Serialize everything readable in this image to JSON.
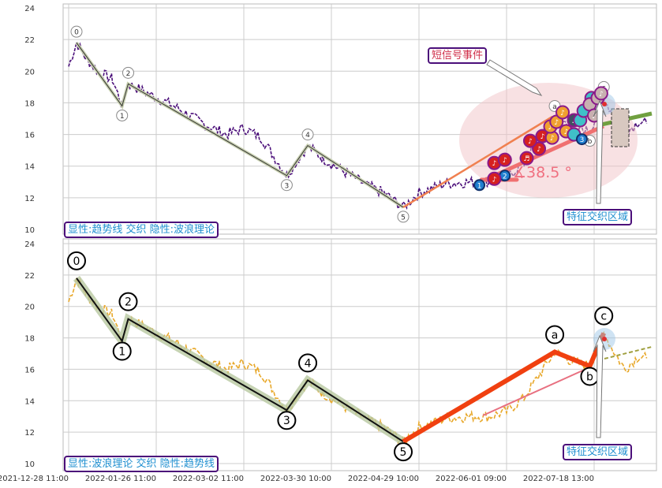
{
  "chart_data": [
    {
      "type": "line",
      "panel": "top",
      "title": "",
      "xlabel": "",
      "ylabel": "",
      "ylim": [
        10,
        24
      ],
      "yticks": [
        10,
        12,
        14,
        16,
        18,
        20,
        22,
        24
      ],
      "grid": true,
      "annotation_box": "显性:趋势线 交织 隐性:波浪理论",
      "event_label": "短信号事件",
      "region_label": "特征交织区域",
      "angle_label": "∡38.5 °",
      "series_color": "#4b0f7a",
      "events": [
        {
          "x": 469,
          "y": 12.8,
          "kind": "blue",
          "label": "1"
        },
        {
          "x": 498,
          "y": 13.4,
          "kind": "blue",
          "label": "2"
        },
        {
          "x": 486,
          "y": 13.2,
          "kind": "red",
          "label": "♪"
        },
        {
          "x": 486,
          "y": 14.2,
          "kind": "red",
          "label": "♪"
        },
        {
          "x": 498,
          "y": 14.4,
          "kind": "red",
          "label": "♪"
        },
        {
          "x": 523,
          "y": 14.5,
          "kind": "red",
          "label": "♬"
        },
        {
          "x": 537,
          "y": 15.1,
          "kind": "red",
          "label": "♪"
        },
        {
          "x": 527,
          "y": 15.6,
          "kind": "red",
          "label": "♪"
        },
        {
          "x": 541,
          "y": 15.9,
          "kind": "red",
          "label": "♪"
        },
        {
          "x": 552,
          "y": 15.8,
          "kind": "orange",
          "label": "♪"
        },
        {
          "x": 550,
          "y": 16.5,
          "kind": "orange",
          "label": "♪"
        },
        {
          "x": 557,
          "y": 16.8,
          "kind": "orange",
          "label": "♪"
        },
        {
          "x": 568,
          "y": 16.2,
          "kind": "orange",
          "label": "♪"
        },
        {
          "x": 564,
          "y": 17.4,
          "kind": "orange",
          "label": "♪"
        },
        {
          "x": 577,
          "y": 16.9,
          "kind": "dark",
          "label": "♪"
        },
        {
          "x": 577,
          "y": 16.0,
          "kind": "cyan",
          "label": ""
        },
        {
          "x": 584,
          "y": 16.9,
          "kind": "cyan",
          "label": ""
        },
        {
          "x": 588,
          "y": 17.5,
          "kind": "cyan",
          "label": ""
        },
        {
          "x": 597,
          "y": 18.3,
          "kind": "cyan",
          "label": ""
        },
        {
          "x": 595,
          "y": 17.9,
          "kind": "gray",
          "label": ""
        },
        {
          "x": 600,
          "y": 17.2,
          "kind": "gray",
          "label": "♪"
        },
        {
          "x": 604,
          "y": 18.3,
          "kind": "gray",
          "label": ""
        },
        {
          "x": 608,
          "y": 18.6,
          "kind": "gray",
          "label": "♪"
        },
        {
          "x": 586,
          "y": 15.7,
          "kind": "blue",
          "label": "3"
        }
      ]
    },
    {
      "type": "line",
      "panel": "bottom",
      "title": "",
      "xlabel": "",
      "ylabel": "",
      "ylim": [
        10,
        24
      ],
      "yticks": [
        10,
        12,
        14,
        16,
        18,
        20,
        22,
        24
      ],
      "grid": true,
      "annotation_box": "显性:波浪理论 交织 隐性:趋势线",
      "region_label": "特征交织区域",
      "series_color": "#e8a82a"
    }
  ],
  "x_ticks": [
    {
      "x": 0,
      "label": "2021-12-28 11:00"
    },
    {
      "x": 100,
      "label": "2022-01-26 11:00"
    },
    {
      "x": 200,
      "label": "2022-03-02 11:00"
    },
    {
      "x": 300,
      "label": "2022-03-30 10:00"
    },
    {
      "x": 400,
      "label": "2022-04-29 10:00"
    },
    {
      "x": 500,
      "label": "2022-06-01 09:00"
    },
    {
      "x": 600,
      "label": "2022-07-18 13:00"
    }
  ],
  "x_range": [
    -9,
    671
  ],
  "price": [
    [
      0,
      20.3
    ],
    [
      9,
      21.8
    ],
    [
      20,
      20.8
    ],
    [
      35,
      19.9
    ],
    [
      50,
      19.5
    ],
    [
      61,
      17.8
    ],
    [
      68,
      19.2
    ],
    [
      90,
      18.6
    ],
    [
      120,
      17.8
    ],
    [
      150,
      16.8
    ],
    [
      180,
      16.0
    ],
    [
      200,
      16.4
    ],
    [
      220,
      15.8
    ],
    [
      249,
      13.4
    ],
    [
      273,
      15.3
    ],
    [
      290,
      14.5
    ],
    [
      310,
      13.8
    ],
    [
      340,
      12.8
    ],
    [
      360,
      12.3
    ],
    [
      382,
      11.4
    ],
    [
      400,
      12.3
    ],
    [
      430,
      12.9
    ],
    [
      460,
      13.0
    ],
    [
      480,
      13.0
    ],
    [
      500,
      13.3
    ],
    [
      520,
      14.2
    ],
    [
      555,
      17.1
    ],
    [
      575,
      16.5
    ],
    [
      595,
      16.2
    ],
    [
      611,
      18.3
    ],
    [
      625,
      16.9
    ],
    [
      635,
      16.0
    ],
    [
      650,
      16.8
    ],
    [
      660,
      16.7
    ]
  ],
  "waves": [
    {
      "label": "0",
      "x": 9,
      "y": 21.8
    },
    {
      "label": "1",
      "x": 61,
      "y": 17.8
    },
    {
      "label": "2",
      "x": 68,
      "y": 19.2
    },
    {
      "label": "3",
      "x": 249,
      "y": 13.4
    },
    {
      "label": "4",
      "x": 273,
      "y": 15.3
    },
    {
      "label": "5",
      "x": 382,
      "y": 11.4
    },
    {
      "label": "a",
      "x": 555,
      "y": 17.1
    },
    {
      "label": "b",
      "x": 595,
      "y": 16.2
    },
    {
      "label": "c",
      "x": 611,
      "y": 18.3
    }
  ],
  "labels": {
    "top_box": "显性:趋势线 交织 隐性:波浪理论",
    "bottom_box": "显性:波浪理论 交织 隐性:趋势线",
    "event": "短信号事件",
    "region_top": "特征交织区域",
    "region_bottom": "特征交织区域",
    "angle": "∡38.5 °"
  }
}
